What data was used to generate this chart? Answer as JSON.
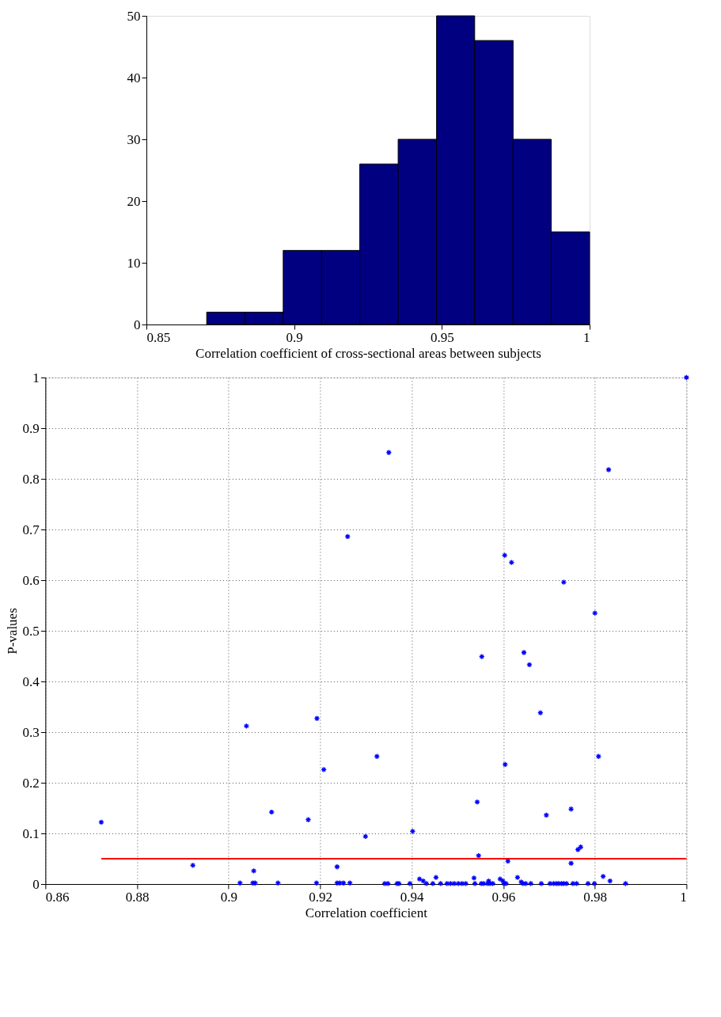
{
  "chart_data": [
    {
      "type": "histogram",
      "xlabel": "Correlation coefficient of cross-sectional areas between subjects",
      "color": "#000080",
      "bins": [
        0.8704,
        0.8834,
        0.8963,
        0.9093,
        0.9222,
        0.9352,
        0.9482,
        0.9611,
        0.9741,
        0.987,
        1.0
      ],
      "values": [
        2,
        2,
        12,
        12,
        26,
        30,
        50,
        46,
        30,
        15
      ],
      "xlim": [
        0.85,
        1
      ],
      "xticks": [
        0.85,
        0.9,
        0.95,
        1
      ],
      "ylim": [
        0,
        50
      ],
      "yticks": [
        0,
        10,
        20,
        30,
        40,
        50
      ],
      "grid": false
    },
    {
      "type": "scatter",
      "xlabel": "Correlation coefficient",
      "ylabel": "P-values",
      "xlim": [
        0.86,
        1
      ],
      "xticks": [
        0.86,
        0.88,
        0.9,
        0.92,
        0.94,
        0.96,
        0.98,
        1
      ],
      "ylim": [
        0,
        1
      ],
      "yticks": [
        0,
        0.1,
        0.2,
        0.3,
        0.4,
        0.5,
        0.6,
        0.7,
        0.8,
        0.9,
        1
      ],
      "grid": true,
      "series": [
        {
          "type": "scatter",
          "color": "#0000ff",
          "marker": "cross",
          "x": [
            0.926,
            0.935,
            0.983,
            1.0,
            0.9603,
            0.9618,
            0.9732,
            0.98,
            0.8722,
            0.8922,
            0.9039,
            0.9055,
            0.9025,
            0.9053,
            0.9058,
            0.9094,
            0.9108,
            0.9174,
            0.9193,
            0.9192,
            0.9208,
            0.9237,
            0.9237,
            0.9243,
            0.9251,
            0.9265,
            0.9553,
            0.9645,
            0.9657,
            0.9681,
            0.9324,
            0.9604,
            0.9808,
            0.9543,
            0.9694,
            0.9748,
            0.9299,
            0.9402,
            0.9763,
            0.9769,
            0.9546,
            0.961,
            0.9748,
            0.9818,
            0.9833,
            0.9867,
            0.9417,
            0.9425,
            0.9453,
            0.9536,
            0.9593,
            0.9599,
            0.9568,
            0.9631,
            0.9639,
            0.9341,
            0.9348,
            0.9368,
            0.9372,
            0.9396,
            0.9432,
            0.9446,
            0.9463,
            0.9477,
            0.9485,
            0.9493,
            0.9502,
            0.951,
            0.9518,
            0.9538,
            0.9552,
            0.9557,
            0.9566,
            0.9571,
            0.9577,
            0.9602,
            0.9606,
            0.9643,
            0.9649,
            0.966,
            0.9683,
            0.9702,
            0.971,
            0.9716,
            0.9721,
            0.9727,
            0.9732,
            0.9738,
            0.9752,
            0.976,
            0.9785,
            0.9799
          ],
          "values": [
            0.686,
            0.852,
            0.818,
            1.0,
            0.649,
            0.635,
            0.596,
            0.535,
            0.122,
            0.037,
            0.312,
            0.026,
            0.002,
            0.002,
            0.002,
            0.142,
            0.002,
            0.127,
            0.327,
            0.002,
            0.226,
            0.034,
            0.002,
            0.002,
            0.002,
            0.002,
            0.449,
            0.457,
            0.433,
            0.338,
            0.252,
            0.236,
            0.252,
            0.162,
            0.136,
            0.148,
            0.094,
            0.104,
            0.068,
            0.073,
            0.056,
            0.045,
            0.041,
            0.015,
            0.006,
            0.001,
            0.01,
            0.006,
            0.013,
            0.012,
            0.01,
            0.006,
            0.006,
            0.013,
            0.004,
            0.001,
            0.001,
            0.001,
            0.001,
            0.001,
            0.001,
            0.001,
            0.001,
            0.001,
            0.001,
            0.001,
            0.001,
            0.001,
            0.001,
            0.001,
            0.001,
            0.001,
            0.001,
            0.001,
            0.001,
            0.001,
            0.001,
            0.001,
            0.001,
            0.001,
            0.001,
            0.001,
            0.001,
            0.001,
            0.001,
            0.001,
            0.001,
            0.001,
            0.001,
            0.001,
            0.001,
            0.001
          ]
        },
        {
          "type": "line",
          "color": "#ff0000",
          "x": [
            0.8722,
            1.0
          ],
          "values": [
            0.05,
            0.05
          ]
        }
      ]
    }
  ]
}
